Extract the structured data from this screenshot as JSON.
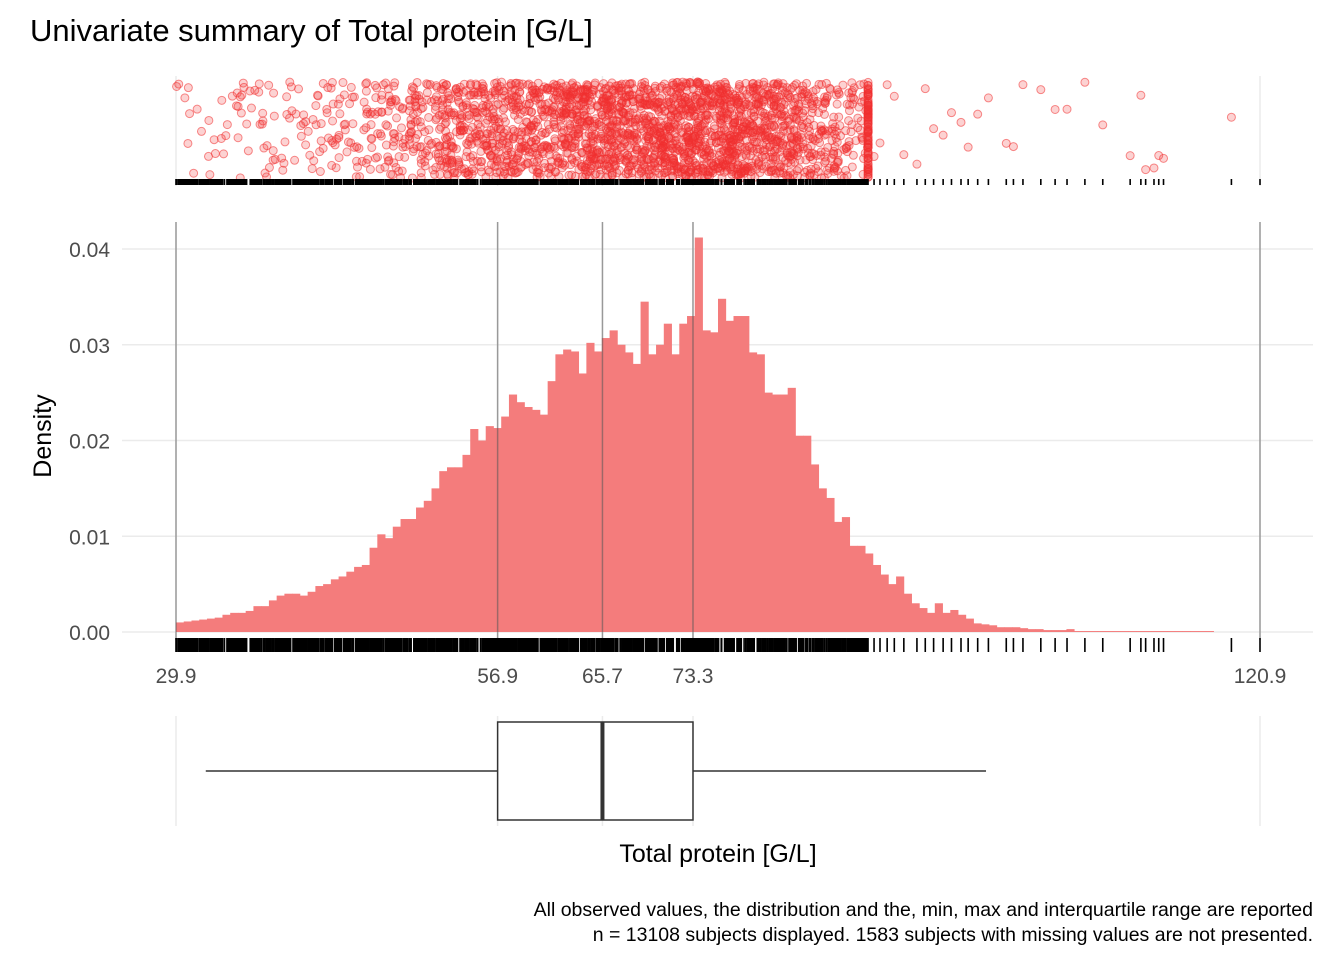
{
  "chart_data": {
    "type": "histogram",
    "title": "Univariate summary of Total protein [G/L]",
    "xlabel": "Total protein [G/L]",
    "ylabel": "Density",
    "xlim": [
      29.9,
      120.9
    ],
    "ylim": [
      0,
      0.041
    ],
    "y_ticks": [
      0.0,
      0.01,
      0.02,
      0.03,
      0.04
    ],
    "x_ticks": [
      29.9,
      56.9,
      65.7,
      73.3,
      120.9
    ],
    "x_tick_labels": [
      "29.9",
      "56.9",
      "65.7",
      "73.3",
      "120.9"
    ],
    "y_tick_labels": [
      "0.00",
      "0.01",
      "0.02",
      "0.03",
      "0.04"
    ],
    "grid": true,
    "bar_color": "#F47C7C",
    "point_color": "#F03030",
    "line_color": "#333333",
    "histogram": {
      "bin_start": 29.9,
      "bin_width": 0.65,
      "densities": [
        0.001,
        0.0011,
        0.0012,
        0.0013,
        0.0014,
        0.0015,
        0.0018,
        0.002,
        0.002,
        0.0022,
        0.0027,
        0.0027,
        0.0033,
        0.0038,
        0.004,
        0.004,
        0.0038,
        0.0042,
        0.0048,
        0.005,
        0.0055,
        0.0058,
        0.0063,
        0.0068,
        0.007,
        0.0088,
        0.0102,
        0.0098,
        0.011,
        0.0118,
        0.0118,
        0.013,
        0.0137,
        0.015,
        0.0168,
        0.0172,
        0.0172,
        0.0185,
        0.0212,
        0.02,
        0.0215,
        0.0213,
        0.0225,
        0.0248,
        0.024,
        0.0235,
        0.0232,
        0.0227,
        0.0262,
        0.029,
        0.0295,
        0.0293,
        0.027,
        0.0302,
        0.0293,
        0.0307,
        0.0315,
        0.03,
        0.0292,
        0.028,
        0.0345,
        0.029,
        0.03,
        0.0322,
        0.029,
        0.0322,
        0.033,
        0.0412,
        0.0315,
        0.0313,
        0.0348,
        0.0325,
        0.033,
        0.033,
        0.0292,
        0.029,
        0.025,
        0.0248,
        0.0248,
        0.0255,
        0.0205,
        0.0205,
        0.0175,
        0.015,
        0.014,
        0.0115,
        0.012,
        0.009,
        0.009,
        0.0082,
        0.007,
        0.006,
        0.005,
        0.0058,
        0.004,
        0.003,
        0.0025,
        0.002,
        0.003,
        0.002,
        0.0023,
        0.0018,
        0.0014,
        0.0009,
        0.0008,
        0.0007,
        0.0005,
        0.0005,
        0.0005,
        0.0004,
        0.0003,
        0.0003,
        0.0002,
        0.0002,
        0.0002,
        0.0003,
        0.0001,
        0.0001,
        0.0001,
        0.0001,
        0.0001,
        0.0001,
        0.0001,
        0.0001,
        0.0001,
        0.0001,
        0.0001,
        0.0001,
        0.0001,
        0.0001,
        0.0001,
        0.0001,
        0.0001,
        0.0001
      ]
    },
    "summary": {
      "min": 29.9,
      "q1": 56.9,
      "median": 65.7,
      "q3": 73.3,
      "max": 120.9,
      "whisker_low": 32.4,
      "whisker_high": 97.9
    },
    "sparse_high_values": [
      88.5,
      89.0,
      89.6,
      90.2,
      91.0,
      92.1,
      92.8,
      93.5,
      94.3,
      95.0,
      95.8,
      96.4,
      97.2,
      98.1,
      99.6,
      100.2,
      101.0,
      102.5,
      103.7,
      104.7,
      106.2,
      107.7,
      110.0,
      110.9,
      111.3,
      112.0,
      112.4,
      112.8,
      118.5,
      120.9
    ],
    "caption_lines": [
      "All observed values, the distribution and the, min, max and interquartile range are reported",
      "n = 13108 subjects displayed. 1583 subjects with missing values are not presented."
    ]
  }
}
